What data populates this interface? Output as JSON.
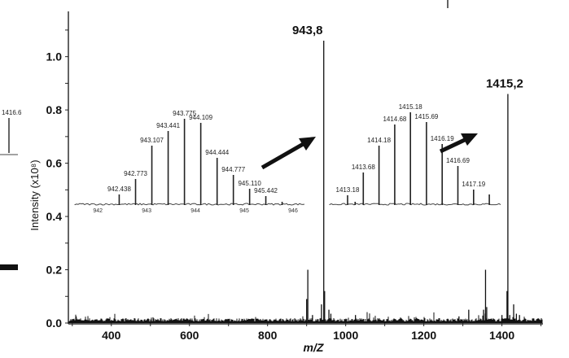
{
  "chart_data": {
    "type": "line",
    "subtype": "mass-spectrum",
    "title": "",
    "xlabel": "m/Z",
    "ylabel": "Intensity (x10⁸)",
    "xlim": [
      290,
      1505
    ],
    "ylim": [
      0,
      1.17
    ],
    "x_ticks": [
      400,
      600,
      800,
      1000,
      1200,
      1400
    ],
    "y_ticks": [
      "0.0",
      "0.2",
      "0.4",
      "0.6",
      "0.8",
      "1.0"
    ],
    "grid": false,
    "peaks": [
      {
        "mz": 310,
        "intensity": 0.025
      },
      {
        "mz": 900,
        "intensity": 0.09
      },
      {
        "mz": 903,
        "intensity": 0.2
      },
      {
        "mz": 915,
        "intensity": 0.03
      },
      {
        "mz": 938,
        "intensity": 0.07
      },
      {
        "mz": 943.8,
        "intensity": 1.06,
        "label": "943,8"
      },
      {
        "mz": 946,
        "intensity": 0.12
      },
      {
        "mz": 957,
        "intensity": 0.05
      },
      {
        "mz": 962,
        "intensity": 0.035
      },
      {
        "mz": 1025,
        "intensity": 0.03
      },
      {
        "mz": 1290,
        "intensity": 0.025
      },
      {
        "mz": 1315,
        "intensity": 0.05
      },
      {
        "mz": 1353,
        "intensity": 0.05
      },
      {
        "mz": 1358,
        "intensity": 0.2
      },
      {
        "mz": 1361,
        "intensity": 0.06
      },
      {
        "mz": 1400,
        "intensity": 0.03
      },
      {
        "mz": 1413,
        "intensity": 0.12
      },
      {
        "mz": 1415.2,
        "intensity": 0.86,
        "label": "1415,2"
      },
      {
        "mz": 1420,
        "intensity": 0.03
      },
      {
        "mz": 1430,
        "intensity": 0.07
      },
      {
        "mz": 1437,
        "intensity": 0.035
      },
      {
        "mz": 1445,
        "intensity": 0.03
      }
    ],
    "insets": [
      {
        "name": "isotope-cluster-943",
        "xlim": [
          941.53,
          946.25
        ],
        "x_ticks": [
          "942",
          "943",
          "944",
          "945",
          "946"
        ],
        "peaks": [
          {
            "mz": 942.438,
            "rel": 13,
            "label": "942.438"
          },
          {
            "mz": 942.773,
            "rel": 32,
            "label": "942.773"
          },
          {
            "mz": 943.107,
            "rel": 73,
            "label": "943.107"
          },
          {
            "mz": 943.441,
            "rel": 91,
            "label": "943.441"
          },
          {
            "mz": 943.775,
            "rel": 106,
            "label": "943.775"
          },
          {
            "mz": 944.109,
            "rel": 101,
            "label": "944.109"
          },
          {
            "mz": 944.444,
            "rel": 58,
            "label": "944.444"
          },
          {
            "mz": 944.777,
            "rel": 37,
            "label": "944.777"
          },
          {
            "mz": 945.11,
            "rel": 20,
            "label": "945.110"
          },
          {
            "mz": 945.442,
            "rel": 11,
            "label": "945.442"
          },
          {
            "mz": 945.776,
            "rel": 4
          }
        ]
      },
      {
        "name": "isotope-cluster-1415",
        "xlim": [
          1412.61,
          1418.05
        ],
        "x_ticks": [],
        "peaks": [
          {
            "mz": 1413.18,
            "rel": 12,
            "label": "1413.18"
          },
          {
            "mz": 1413.42,
            "rel": 4
          },
          {
            "mz": 1413.68,
            "rel": 40,
            "label": "1413.68"
          },
          {
            "mz": 1414.18,
            "rel": 73,
            "label": "1414.18"
          },
          {
            "mz": 1414.68,
            "rel": 99,
            "label": "1414.68"
          },
          {
            "mz": 1415.18,
            "rel": 114,
            "label": "1415.18"
          },
          {
            "mz": 1415.69,
            "rel": 102,
            "label": "1415.69"
          },
          {
            "mz": 1416.19,
            "rel": 75,
            "label": "1416.19"
          },
          {
            "mz": 1416.69,
            "rel": 48,
            "label": "1416.69"
          },
          {
            "mz": 1417.19,
            "rel": 19,
            "label": "1417.19"
          },
          {
            "mz": 1417.69,
            "rel": 13
          }
        ]
      }
    ],
    "edge_fragment_label": "1416.6"
  }
}
